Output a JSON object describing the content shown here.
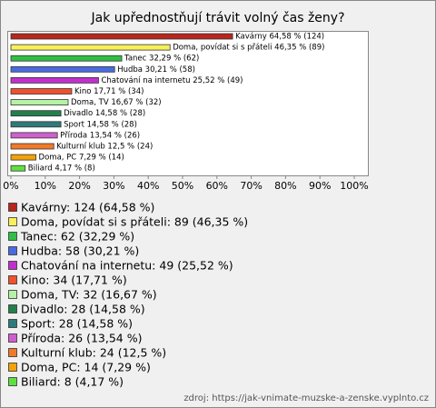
{
  "chart_data": {
    "type": "hbar",
    "title": "Jak upřednostňují trávit volný čas ženy?",
    "values": [
      64.58,
      46.35,
      32.29,
      30.21,
      25.52,
      17.71,
      16.67,
      14.58,
      14.58,
      13.54,
      12.5,
      7.29,
      4.17
    ],
    "value_labels": [
      "Kavárny 64,58 % (124)",
      "Doma, povídat si s přáteli 46,35 % (89)",
      "Tanec 32,29 % (62)",
      "Hudba 30,21 % (58)",
      "Chatování na internetu 25,52 % (49)",
      "Kino 17,71 % (34)",
      "Doma, TV 16,67 % (32)",
      "Divadlo 14,58 % (28)",
      "Sport 14,58 % (28)",
      "Příroda 13,54 % (26)",
      "Kulturní klub 12,5 % (24)",
      "Doma, PC 7,29 % (14)",
      "Biliard 4,17 % (8)"
    ],
    "legend": [
      "Kavárny: 124 (64,58 %)",
      "Doma, povídat si s přáteli: 89 (46,35 %)",
      "Tanec: 62 (32,29 %)",
      "Hudba: 58 (30,21 %)",
      "Chatování na internetu: 49 (25,52 %)",
      "Kino: 34 (17,71 %)",
      "Doma, TV: 32 (16,67 %)",
      "Divadlo: 28 (14,58 %)",
      "Sport: 28 (14,58 %)",
      "Příroda: 26 (13,54 %)",
      "Kulturní klub: 24 (12,5 %)",
      "Doma, PC: 14 (7,29 %)",
      "Biliard: 8 (4,17 %)"
    ],
    "colors": [
      "#b8261c",
      "#f7f05a",
      "#2fc043",
      "#4a6be0",
      "#c22fd0",
      "#f2512e",
      "#b6f2a4",
      "#23804a",
      "#2f7a7a",
      "#cf5fcf",
      "#f07a2a",
      "#f2a20a",
      "#5fe040"
    ],
    "xlim": [
      0,
      100
    ],
    "xticks": [
      {
        "value": 0,
        "label": "0%"
      },
      {
        "value": 10,
        "label": "10%"
      },
      {
        "value": 20,
        "label": "20%"
      },
      {
        "value": 30,
        "label": "30%"
      },
      {
        "value": 40,
        "label": "40%"
      },
      {
        "value": 50,
        "label": "50%"
      },
      {
        "value": 60,
        "label": "60%"
      },
      {
        "value": 70,
        "label": "70%"
      },
      {
        "value": 80,
        "label": "80%"
      },
      {
        "value": 90,
        "label": "90%"
      },
      {
        "value": 100,
        "label": "100%"
      }
    ],
    "source": "zdroj: https://jak-vnimate-muzske-a-zenske.vyplnto.cz"
  }
}
